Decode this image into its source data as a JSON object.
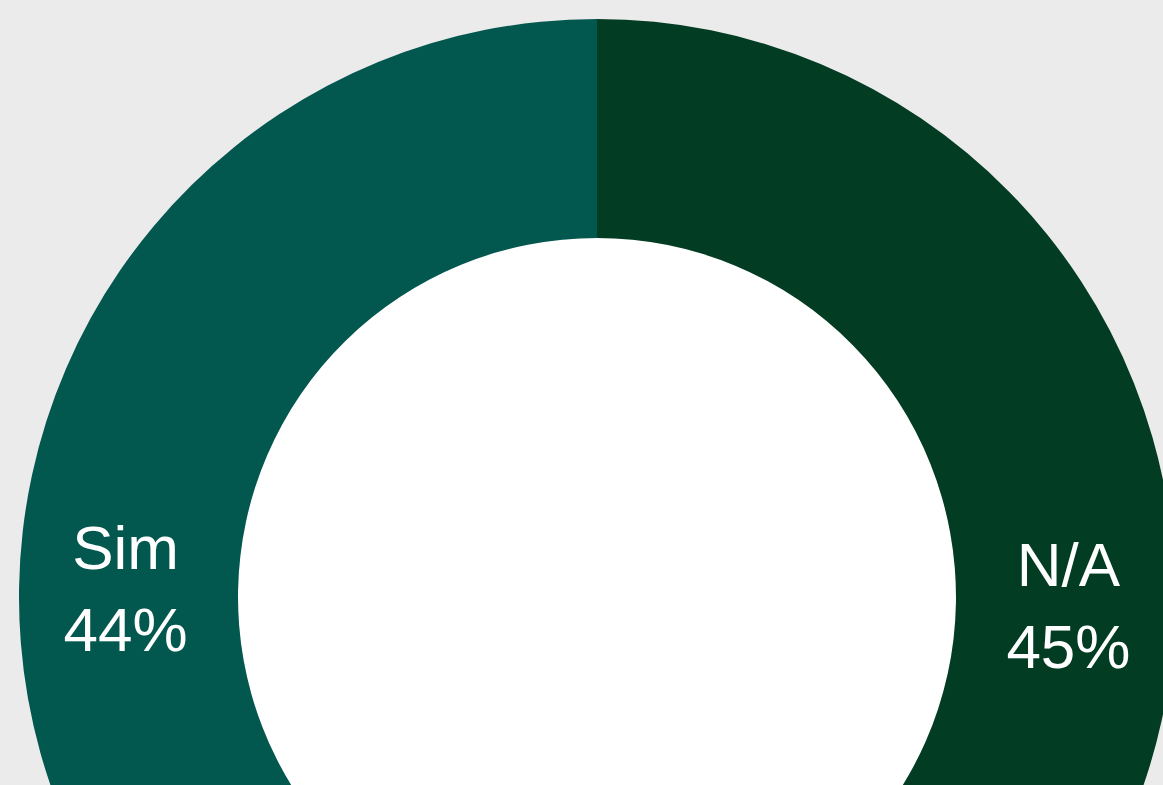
{
  "chart_data": {
    "type": "donut",
    "categories": [
      "N/A",
      "Sim"
    ],
    "values": [
      45,
      44
    ],
    "value_labels": [
      "45%",
      "44%"
    ],
    "colors": [
      "#023c22",
      "#02574f"
    ]
  }
}
